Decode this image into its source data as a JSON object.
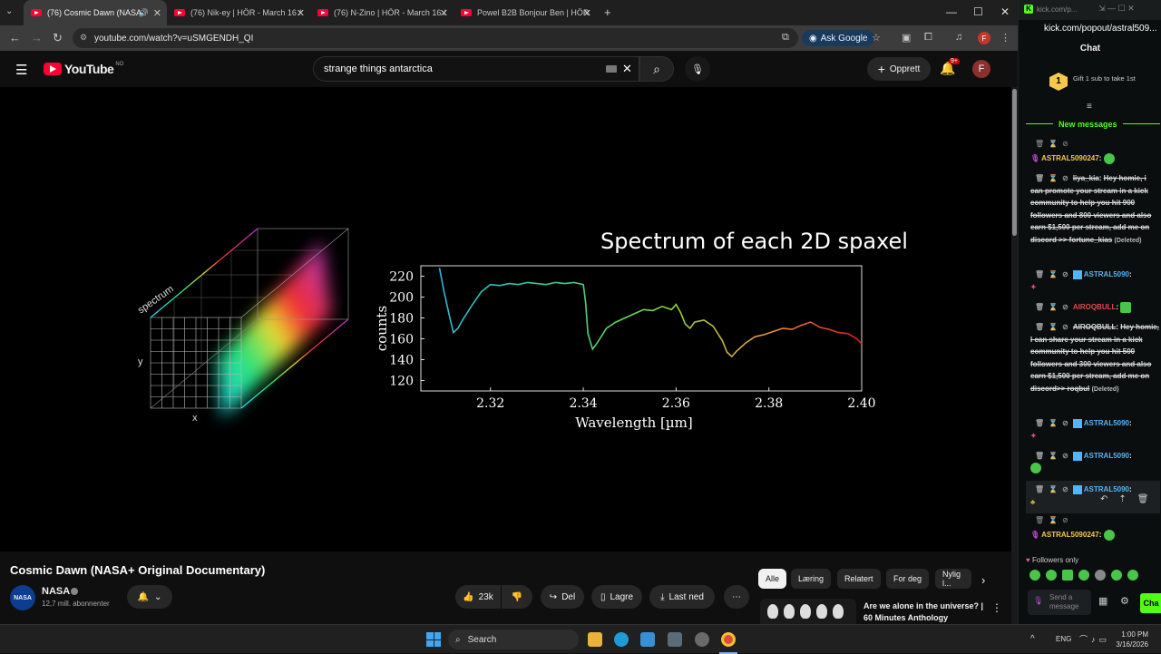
{
  "browser": {
    "tabs": [
      {
        "label": "(76) Cosmic Dawn (NASA+",
        "active": true
      },
      {
        "label": "(76) Nik-ey | HÖR - March 16 /",
        "active": false
      },
      {
        "label": "(76) N-Zino | HÖR - March 16 /",
        "active": false
      },
      {
        "label": "Powel B2B Bonjour Ben | HÖR",
        "active": false
      }
    ],
    "url": "youtube.com/watch?v=uSMGENDH_QI",
    "ask_google": "Ask Google",
    "profile_initial": "F"
  },
  "youtube": {
    "logo_text": "YouTube",
    "region": "NO",
    "search_query": "strange things antarctica",
    "create_label": "Opprett",
    "notifications_badge": "9+",
    "avatar_initial": "F"
  },
  "video_frame": {
    "title": "Spectrum of each 2D spaxel",
    "cube_labels": {
      "spectrum": "spectrum",
      "y": "y",
      "x": "x"
    },
    "chart_data": {
      "type": "line",
      "title": "Spectrum of each 2D spaxel",
      "xlabel": "Wavelength [µm]",
      "ylabel": "counts",
      "xlim": [
        2.305,
        2.4
      ],
      "ylim": [
        110,
        230
      ],
      "x_ticks": [
        "2.32",
        "2.34",
        "2.36",
        "2.38",
        "2.40"
      ],
      "y_ticks": [
        "220",
        "200",
        "180",
        "160",
        "140",
        "120"
      ],
      "series": [
        {
          "x": [
            2.309,
            2.31,
            2.311,
            2.312,
            2.313,
            2.314,
            2.316,
            2.318,
            2.32,
            2.322,
            2.324,
            2.326,
            2.328,
            2.33,
            2.332,
            2.334,
            2.336,
            2.338,
            2.34,
            2.3405,
            2.341,
            2.342,
            2.343,
            2.345,
            2.347,
            2.349,
            2.351,
            2.353,
            2.355,
            2.357,
            2.359,
            2.36,
            2.361,
            2.362,
            2.363,
            2.364,
            2.366,
            2.368,
            2.369,
            2.37,
            2.371,
            2.372,
            2.373,
            2.375,
            2.377,
            2.379,
            2.381,
            2.383,
            2.385,
            2.387,
            2.389,
            2.391,
            2.393,
            2.395,
            2.397,
            2.399,
            2.4
          ],
          "y": [
            228,
            205,
            185,
            166,
            170,
            178,
            192,
            205,
            212,
            211,
            213,
            212,
            214,
            213,
            212,
            214,
            213,
            214,
            212,
            195,
            165,
            150,
            156,
            170,
            176,
            180,
            184,
            188,
            187,
            191,
            188,
            193,
            185,
            174,
            170,
            176,
            178,
            172,
            165,
            158,
            147,
            143,
            148,
            156,
            162,
            164,
            167,
            170,
            169,
            173,
            176,
            171,
            169,
            166,
            165,
            160,
            155
          ]
        }
      ]
    }
  },
  "video_meta": {
    "title": "Cosmic Dawn (NASA+ Original Documentary)",
    "channel": "NASA",
    "subscribers": "12,7 mill. abonnenter",
    "likes": "23k",
    "share": "Del",
    "save": "Lagre",
    "download": "Last ned"
  },
  "filter_chips": [
    "Alle",
    "Læring",
    "Relatert",
    "For deg",
    "Nylig l..."
  ],
  "recommendation": {
    "title_line1": "Are we alone in the universe? |",
    "title_line2": "60 Minutes Anthology"
  },
  "chat": {
    "url": "kick.com/popout/astral509...",
    "header": "Chat",
    "gift_text": "Gift 1 sub to take 1st",
    "gift_rank": "1",
    "new_messages": "New messages",
    "messages": [
      {
        "user": "ASTRAL5090247",
        "text": ""
      },
      {
        "user": "liya_kia",
        "text": "Hey homie, i can promote your stream in a kick community to help you hit 900 followers and 800 viewers and also earn $1,500 per stream, add me on discord >> fortune_kias",
        "deleted": "(Deleted)"
      },
      {
        "user": "ASTRAL5090",
        "text": ""
      },
      {
        "user": "AIROQBULL",
        "text": ""
      },
      {
        "user": "AIROQBULL",
        "text": "Hey homie, I can share your stream in a kick community to help you hit 500 followers and 300 viewers and also earn $1,500 per stream, add me on discord>> roqbul",
        "deleted": "(Deleted)"
      },
      {
        "user": "ASTRAL5090",
        "text": ""
      },
      {
        "user": "ASTRAL5090",
        "text": ""
      },
      {
        "user": "ASTRAL5090",
        "text": ""
      },
      {
        "user": "ASTRAL5090247",
        "text": ""
      }
    ],
    "followers_only": "Followers only",
    "send_placeholder": "Send a message",
    "chat_button": "Cha"
  },
  "taskbar": {
    "search": "Search",
    "lang": "ENG",
    "time": "1:00 PM",
    "date": "3/16/2026"
  }
}
